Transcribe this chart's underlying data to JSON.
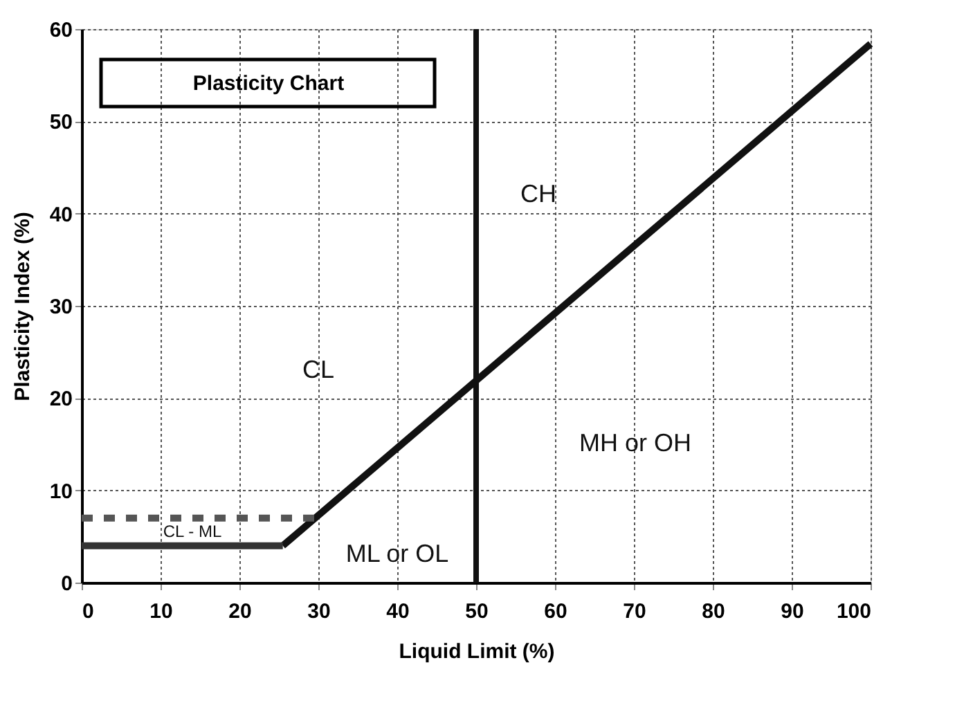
{
  "chart_data": {
    "type": "line",
    "title": "Plasticity Chart",
    "xlabel": "Liquid Limit (%)",
    "ylabel": "Plasticity Index (%)",
    "xlim": [
      0,
      100
    ],
    "ylim": [
      0,
      60
    ],
    "xticks": [
      0,
      10,
      20,
      30,
      40,
      50,
      60,
      70,
      80,
      90,
      100
    ],
    "yticks": [
      0,
      10,
      20,
      30,
      40,
      50,
      60
    ],
    "grid": true,
    "marker": "none",
    "series": [
      {
        "color": "#111111",
        "x": [
          25.5,
          100
        ],
        "values": [
          4,
          58.4
        ],
        "line_style": "solid"
      },
      {
        "color": "#333333",
        "x": [
          0,
          25.5
        ],
        "values": [
          4,
          4
        ],
        "line_style": "solid"
      },
      {
        "color": "#555555",
        "x": [
          0,
          29.6
        ],
        "values": [
          7,
          7
        ],
        "line_style": "dashed"
      }
    ],
    "ref_lines": [
      {
        "axis": "x",
        "value": 50,
        "color": "#111111",
        "line_style": "solid"
      }
    ],
    "annotations": [
      "CH",
      "CL",
      "MH or OH",
      "ML or OL",
      "CL - ML"
    ]
  }
}
